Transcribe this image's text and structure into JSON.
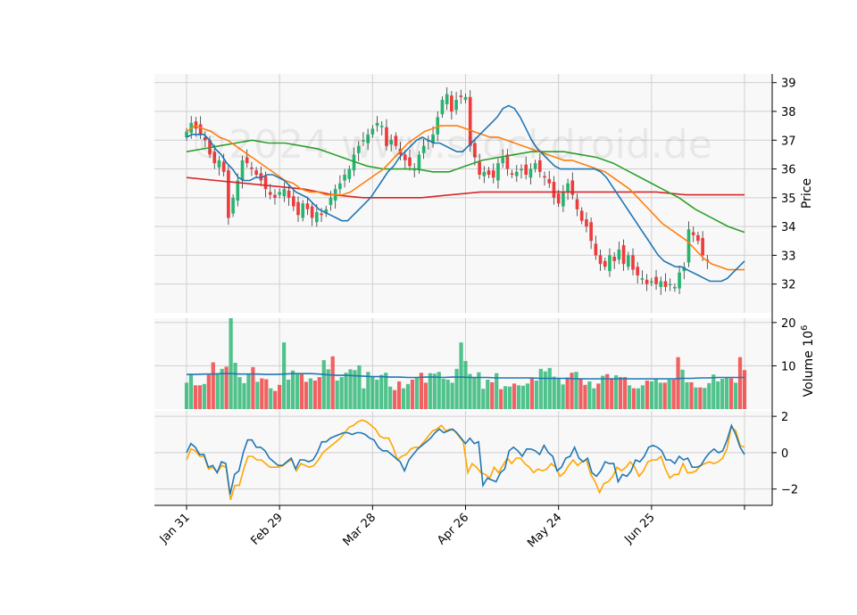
{
  "chart_data": {
    "type": "candlestick",
    "watermark": "©2024 www.stockdroid.de",
    "x_tick_labels": [
      "Jan 31",
      "Feb 29",
      "Mar 28",
      "Apr 26",
      "May 24",
      "Jun 25"
    ],
    "x_tick_index": [
      0,
      20,
      40,
      60,
      80,
      100,
      120
    ],
    "colors": {
      "up": "#26b46f",
      "down": "#ef3b3b",
      "bg": "#f8f8f8",
      "grid": "#d0d0d0",
      "ma_short": "#1f77b4",
      "ma_mid": "#ff7f0e",
      "ma_long": "#2ca02c",
      "ma_200": "#d62728",
      "osc_1": "#1f77b4",
      "osc_2": "#ffa500"
    },
    "price": {
      "ylabel": "Price",
      "ylim": [
        31.0,
        39.3
      ],
      "ticks": [
        32,
        33,
        34,
        35,
        36,
        37,
        38,
        39
      ],
      "closes": [
        37.3,
        37.6,
        37.4,
        37.2,
        37.0,
        36.5,
        36.2,
        36.3,
        35.9,
        34.3,
        35.0,
        35.6,
        36.3,
        36.2,
        36.0,
        35.8,
        35.6,
        35.3,
        35.1,
        35.0,
        35.2,
        35.3,
        35.0,
        34.7,
        34.4,
        34.8,
        34.6,
        34.3,
        34.5,
        34.4,
        34.6,
        35.0,
        35.3,
        35.5,
        35.8,
        36.0,
        36.5,
        36.8,
        37.0,
        37.2,
        37.4,
        37.6,
        37.5,
        36.8,
        37.0,
        36.8,
        36.5,
        36.3,
        36.1,
        36.0,
        36.5,
        36.8,
        37.0,
        37.2,
        37.8,
        38.4,
        38.6,
        38.0,
        38.4,
        38.5,
        38.5,
        36.8,
        36.4,
        35.8,
        35.9,
        35.8,
        35.7,
        36.2,
        36.4,
        36.0,
        35.8,
        35.9,
        36.0,
        35.8,
        36.0,
        36.2,
        35.9,
        35.7,
        35.5,
        35.0,
        34.8,
        35.2,
        35.5,
        35.1,
        34.6,
        34.2,
        34.0,
        33.5,
        33.0,
        32.7,
        32.6,
        33.0,
        32.8,
        33.2,
        32.7,
        33.0,
        32.5,
        32.3,
        32.2,
        32.0,
        32.1,
        32.0,
        32.1,
        31.9,
        32.0,
        31.9,
        32.4,
        32.6,
        33.9,
        33.7,
        33.5,
        33.0,
        32.8
      ],
      "ma_short": [
        37.1,
        37.2,
        37.2,
        37.2,
        37.0,
        36.7,
        36.5,
        36.2,
        36.0,
        35.7,
        35.6,
        35.6,
        35.7,
        35.7,
        35.8,
        35.8,
        35.7,
        35.6,
        35.4,
        35.2,
        35.1,
        35.0,
        34.8,
        34.6,
        34.5,
        34.4,
        34.3,
        34.2,
        34.2,
        34.4,
        34.6,
        34.8,
        35.0,
        35.3,
        35.6,
        35.9,
        36.1,
        36.4,
        36.6,
        36.8,
        37.0,
        37.1,
        37.0,
        36.9,
        36.9,
        36.8,
        36.7,
        36.6,
        36.6,
        36.8,
        37.0,
        37.2,
        37.4,
        37.6,
        37.8,
        38.1,
        38.2,
        38.1,
        37.8,
        37.4,
        37.0,
        36.7,
        36.5,
        36.3,
        36.1,
        36.0,
        36.0,
        36.0,
        36.0,
        36.0,
        36.0,
        36.0,
        35.9,
        35.7,
        35.4,
        35.1,
        34.8,
        34.5,
        34.2,
        33.9,
        33.6,
        33.3,
        33.0,
        32.8,
        32.7,
        32.6,
        32.6,
        32.5,
        32.4,
        32.3,
        32.2,
        32.1,
        32.1,
        32.1,
        32.2,
        32.4,
        32.6,
        32.8
      ],
      "ma_mid": [
        37.3,
        37.5,
        37.4,
        37.3,
        37.1,
        37.0,
        36.8,
        36.6,
        36.4,
        36.2,
        36.0,
        35.8,
        35.6,
        35.5,
        35.3,
        35.2,
        35.2,
        35.1,
        35.1,
        35.1,
        35.2,
        35.4,
        35.6,
        35.8,
        36.0,
        36.3,
        36.6,
        36.9,
        37.1,
        37.3,
        37.4,
        37.5,
        37.5,
        37.5,
        37.4,
        37.3,
        37.2,
        37.1,
        37.1,
        37.0,
        36.9,
        36.8,
        36.7,
        36.6,
        36.5,
        36.4,
        36.3,
        36.3,
        36.2,
        36.1,
        36.0,
        35.9,
        35.7,
        35.5,
        35.3,
        35.0,
        34.7,
        34.4,
        34.1,
        33.9,
        33.7,
        33.5,
        33.2,
        32.9,
        32.7,
        32.6,
        32.5,
        32.5,
        32.5
      ],
      "ma_long": [
        36.6,
        36.7,
        36.8,
        36.9,
        37.0,
        36.9,
        36.9,
        36.8,
        36.7,
        36.5,
        36.3,
        36.1,
        36.0,
        36.0,
        36.0,
        35.9,
        35.9,
        36.1,
        36.3,
        36.4,
        36.5,
        36.6,
        36.6,
        36.6,
        36.5,
        36.4,
        36.2,
        35.9,
        35.6,
        35.3,
        35.0,
        34.6,
        34.3,
        34.0,
        33.8
      ],
      "ma_200": [
        35.7,
        35.6,
        35.5,
        35.4,
        35.3,
        35.1,
        35.0,
        35.0,
        35.0,
        35.1,
        35.2,
        35.2,
        35.2,
        35.2,
        35.2,
        35.2,
        35.2,
        35.1,
        35.1,
        35.1
      ]
    },
    "volume": {
      "ylabel": "Volume  10^6",
      "ylim": [
        0,
        21
      ],
      "ticks": [
        10,
        20
      ],
      "values": [
        6.1,
        8.0,
        5.5,
        5.5,
        5.8,
        7.9,
        10.8,
        8.2,
        9.3,
        9.8,
        21.0,
        10.7,
        7.4,
        6.0,
        8.2,
        9.7,
        6.3,
        7.1,
        6.9,
        4.8,
        4.2,
        5.6,
        15.4,
        6.8,
        8.9,
        8.2,
        8.1,
        6.3,
        7.1,
        6.6,
        7.4,
        11.3,
        9.2,
        12.2,
        6.6,
        7.4,
        8.4,
        9.2,
        9.0,
        10.1,
        4.8,
        8.6,
        7.4,
        6.8,
        7.9,
        8.4,
        5.2,
        4.4,
        6.4,
        4.8,
        5.8,
        6.8,
        7.4,
        8.4,
        6.1,
        8.3,
        8.2,
        8.6,
        7.0,
        6.8,
        6.1,
        9.3,
        15.4,
        11.1,
        8.1,
        7.4,
        8.5,
        4.7,
        6.8,
        6.2,
        8.3,
        4.6,
        5.3,
        5.2,
        5.9,
        5.5,
        5.4,
        5.9,
        7.1,
        6.6,
        9.3,
        8.7,
        9.5,
        7.5,
        7.1,
        5.7,
        7.3,
        8.4,
        8.6,
        7.1,
        5.6,
        6.4,
        4.8,
        5.9,
        7.7,
        8.1,
        7.0,
        7.8,
        7.4,
        7.4,
        5.5,
        4.8,
        4.8,
        5.5,
        6.6,
        6.4,
        7.0,
        6.1,
        6.1,
        6.8,
        6.8,
        12.0,
        9.1,
        6.2,
        6.2,
        5.0,
        5.0,
        4.9,
        6.0,
        8.0,
        6.4,
        7.0,
        7.4,
        7.1,
        6.1,
        12.0,
        9.0
      ],
      "ma": [
        8.0,
        8.0,
        8.1,
        8.1,
        8.2,
        8.2,
        8.1,
        8.1,
        8.1,
        8.0,
        8.0,
        8.1,
        8.2,
        8.2,
        8.2,
        8.1,
        7.9,
        7.8,
        7.8,
        7.7,
        7.6,
        7.5,
        7.5,
        7.4,
        7.4,
        7.3,
        7.3,
        7.4,
        7.4,
        7.3,
        7.4,
        7.4,
        7.3,
        7.3,
        7.3,
        7.2,
        7.2,
        7.2,
        7.2,
        7.2,
        7.1,
        7.1,
        7.1,
        7.1,
        7.0,
        7.0,
        7.0,
        7.0,
        7.0,
        7.0,
        7.0,
        7.0,
        7.0,
        7.0,
        7.0,
        7.0,
        7.1,
        7.1,
        7.2,
        7.2,
        7.3,
        7.3,
        7.3,
        7.3
      ]
    },
    "oscillator": {
      "ylim": [
        -2.9,
        2.3
      ],
      "ticks": [
        -2,
        0,
        2
      ],
      "line_1": [
        0.0,
        0.5,
        0.3,
        -0.1,
        -0.1,
        -0.8,
        -0.7,
        -1.1,
        -0.5,
        -0.6,
        -2.3,
        -1.2,
        -1.0,
        0.0,
        0.7,
        0.7,
        0.3,
        0.3,
        0.1,
        -0.3,
        -0.5,
        -0.7,
        -0.7,
        -0.5,
        -0.3,
        -0.9,
        -0.4,
        -0.4,
        -0.5,
        -0.4,
        0.0,
        0.6,
        0.6,
        0.8,
        0.9,
        1.0,
        1.1,
        1.1,
        1.0,
        1.1,
        1.1,
        1.0,
        0.8,
        0.7,
        0.3,
        0.1,
        0.1,
        -0.1,
        -0.3,
        -0.5,
        -1.0,
        -0.4,
        -0.1,
        0.2,
        0.4,
        0.6,
        0.8,
        1.1,
        1.3,
        1.1,
        1.2,
        1.3,
        1.1,
        0.8,
        0.5,
        0.8,
        0.5,
        0.6,
        -1.8,
        -1.4,
        -1.5,
        -1.6,
        -1.1,
        -0.9,
        0.1,
        0.3,
        0.1,
        -0.2,
        0.2,
        0.2,
        0.1,
        -0.1,
        0.4,
        0.0,
        -0.2,
        -1.0,
        -0.8,
        -0.3,
        -0.2,
        0.3,
        -0.3,
        -0.5,
        -0.3,
        -1.1,
        -1.3,
        -1.0,
        -0.5,
        -0.6,
        -0.6,
        -1.6,
        -1.2,
        -1.3,
        -1.0,
        -0.4,
        -0.5,
        -0.2,
        0.3,
        0.4,
        0.3,
        0.1,
        -0.4,
        -0.4,
        -0.6,
        -0.2,
        -0.4,
        -0.3,
        -0.8,
        -0.8,
        -0.7,
        -0.3,
        0.0,
        0.2,
        0.0,
        0.1,
        0.7,
        1.5,
        1.0,
        0.3,
        -0.1
      ],
      "line_2": [
        -0.4,
        0.2,
        0.1,
        -0.2,
        -0.2,
        -0.9,
        -0.8,
        -1.1,
        -0.7,
        -0.8,
        -2.6,
        -1.8,
        -1.8,
        -0.9,
        -0.2,
        -0.2,
        -0.4,
        -0.4,
        -0.6,
        -0.8,
        -0.8,
        -0.8,
        -0.7,
        -0.5,
        -0.4,
        -1.0,
        -0.6,
        -0.7,
        -0.8,
        -0.7,
        -0.4,
        0.0,
        0.2,
        0.4,
        0.6,
        0.8,
        1.1,
        1.4,
        1.5,
        1.7,
        1.8,
        1.7,
        1.5,
        1.3,
        0.9,
        0.8,
        0.8,
        0.3,
        -0.4,
        -0.2,
        -0.1,
        0.2,
        0.3,
        0.3,
        0.6,
        0.9,
        1.2,
        1.3,
        1.5,
        1.2,
        1.3,
        1.2,
        0.9,
        0.6,
        -1.1,
        -0.6,
        -0.8,
        -1.1,
        -1.2,
        -1.4,
        -0.8,
        -1.1,
        -0.7,
        -0.3,
        -0.6,
        -0.3,
        -0.3,
        -0.6,
        -0.8,
        -1.1,
        -0.9,
        -1.0,
        -0.9,
        -0.6,
        -0.8,
        -1.3,
        -1.1,
        -0.7,
        -0.4,
        -0.7,
        -0.5,
        -0.4,
        -1.2,
        -1.6,
        -2.2,
        -1.7,
        -1.6,
        -1.3,
        -0.8,
        -1.0,
        -0.8,
        -0.5,
        -0.8,
        -1.3,
        -1.0,
        -0.5,
        -0.4,
        -0.4,
        -0.2,
        -0.9,
        -1.4,
        -1.2,
        -1.2,
        -0.6,
        -1.1,
        -1.1,
        -1.0,
        -0.7,
        -0.6,
        -0.5,
        -0.6,
        -0.5,
        -0.3,
        0.2,
        1.4,
        1.2,
        0.4,
        0.3
      ]
    }
  }
}
